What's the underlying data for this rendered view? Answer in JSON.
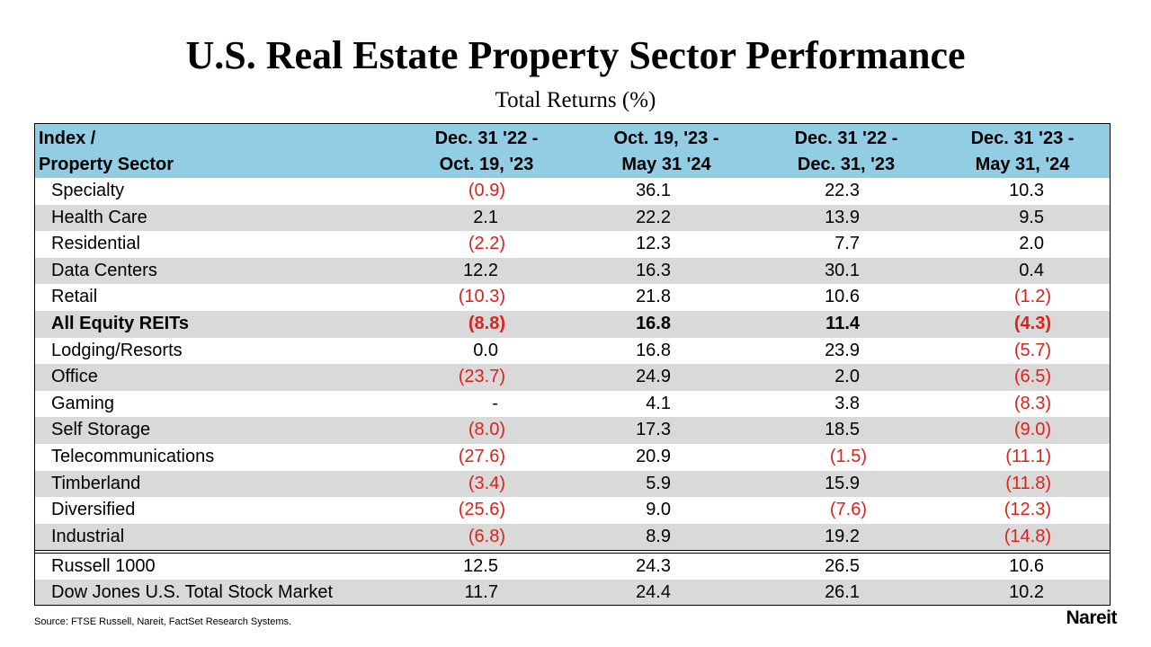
{
  "header": {
    "title": "U.S. Real Estate Property Sector Performance",
    "subtitle": "Total Returns (%)"
  },
  "table": {
    "columns": [
      [
        "Index /",
        "Property Sector"
      ],
      [
        "Dec. 31 '22 -",
        "Oct. 19, '23"
      ],
      [
        "Oct. 19, '23 -",
        "May 31 '24"
      ],
      [
        "Dec. 31 '22 -",
        "Dec. 31, '23"
      ],
      [
        "Dec. 31 '23 -",
        "May 31, '24"
      ]
    ],
    "rows": [
      {
        "cells": [
          "Specialty",
          "(0.9)",
          "36.1",
          "22.3",
          "10.3"
        ]
      },
      {
        "cells": [
          "Health Care",
          "2.1",
          "22.2",
          "13.9",
          "9.5"
        ]
      },
      {
        "cells": [
          "Residential",
          "(2.2)",
          "12.3",
          "7.7",
          "2.0"
        ]
      },
      {
        "cells": [
          "Data Centers",
          "12.2",
          "16.3",
          "30.1",
          "0.4"
        ]
      },
      {
        "cells": [
          "Retail",
          "(10.3)",
          "21.8",
          "10.6",
          "(1.2)"
        ]
      },
      {
        "cells": [
          "All Equity REITs",
          "(8.8)",
          "16.8",
          "11.4",
          "(4.3)"
        ],
        "bold": true
      },
      {
        "cells": [
          "Lodging/Resorts",
          "0.0",
          "16.8",
          "23.9",
          "(5.7)"
        ]
      },
      {
        "cells": [
          "Office",
          "(23.7)",
          "24.9",
          "2.0",
          "(6.5)"
        ]
      },
      {
        "cells": [
          "Gaming",
          "-",
          "4.1",
          "3.8",
          "(8.3)"
        ]
      },
      {
        "cells": [
          "Self Storage",
          "(8.0)",
          "17.3",
          "18.5",
          "(9.0)"
        ]
      },
      {
        "cells": [
          "Telecommunications",
          "(27.6)",
          "20.9",
          "(1.5)",
          "(11.1)"
        ]
      },
      {
        "cells": [
          "Timberland",
          "(3.4)",
          "5.9",
          "15.9",
          "(11.8)"
        ]
      },
      {
        "cells": [
          "Diversified",
          "(25.6)",
          "9.0",
          "(7.6)",
          "(12.3)"
        ]
      },
      {
        "cells": [
          "Industrial",
          "(6.8)",
          "8.9",
          "19.2",
          "(14.8)"
        ]
      }
    ],
    "benchmark_rows": [
      {
        "cells": [
          "Russell 1000",
          "12.5",
          "24.3",
          "26.5",
          "10.6"
        ]
      },
      {
        "cells": [
          "Dow Jones U.S. Total Stock Market",
          "11.7",
          "24.4",
          "26.1",
          "10.2"
        ]
      }
    ]
  },
  "footer": {
    "source": "Source: FTSE Russell, Nareit, FactSet Research Systems.",
    "logo": "Nareit"
  }
}
